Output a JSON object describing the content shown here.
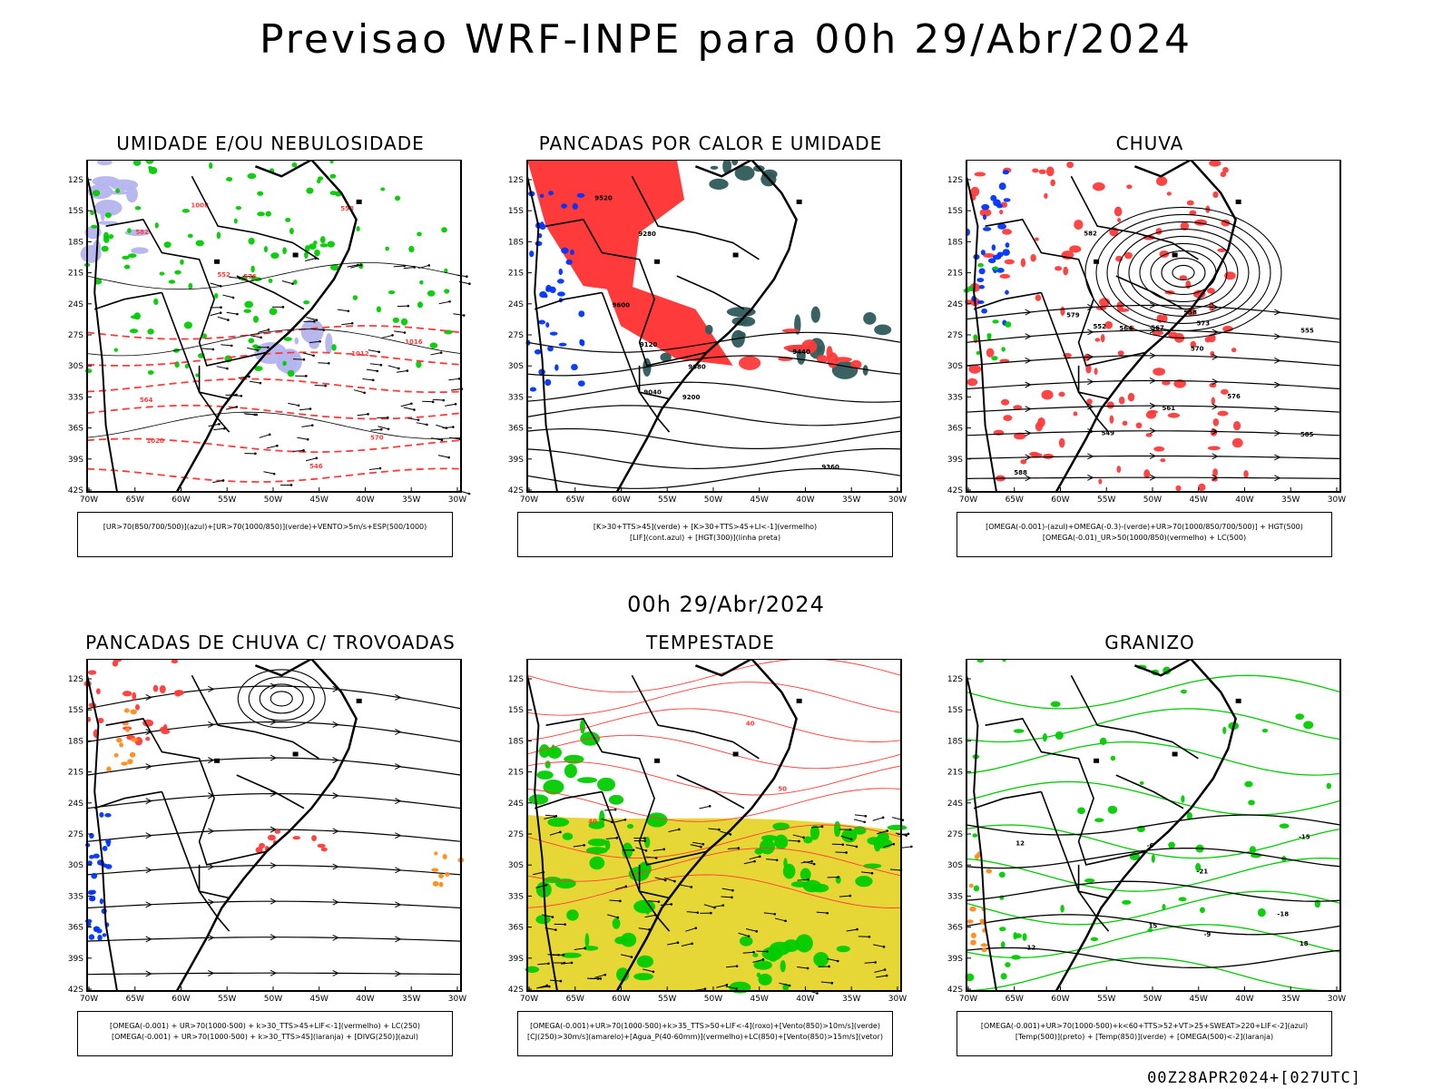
{
  "title": "Previsao WRF-INPE  para 00h 29/Abr/2024",
  "mid_label": "00h 29/Abr/2024",
  "footer": "00Z28APR2024+[027UTC]",
  "axes": {
    "lat_ticks": [
      "12S",
      "15S",
      "18S",
      "21S",
      "24S",
      "27S",
      "30S",
      "33S",
      "36S",
      "39S",
      "42S"
    ],
    "lon_ticks": [
      "70W",
      "65W",
      "60W",
      "55W",
      "50W",
      "45W",
      "40W",
      "35W",
      "30W"
    ]
  },
  "colors": {
    "green": "#00cc00",
    "red": "#ff3a3a",
    "blue": "#0033ff",
    "lavender": "#b4b4ee",
    "dark_teal": "#2f5a5a",
    "yellow": "#e6d736",
    "orange": "#ff8c1a",
    "black": "#000000"
  },
  "panels": [
    {
      "id": "umidade",
      "title": "UMIDADE E/OU NEBULOSIDADE",
      "legend": [
        "[UR>70(850/700/500)](azul)+[UR>70(1000/850)](verde)+VENTO>5m/s+ESP(500/1000)"
      ],
      "labels": [
        "1012",
        "1016",
        "1020",
        "1008",
        "576",
        "570",
        "564",
        "558",
        "552",
        "546",
        "582"
      ]
    },
    {
      "id": "pancadas_calor",
      "title": "PANCADAS POR CALOR E UMIDADE",
      "legend": [
        "[K>30+TTS>45](verde) + [K>30+TTS>45+LI<-1](vermelho)",
        "[LIF](cont.azul) + [HGT(300)](linha preta)"
      ],
      "labels": [
        "9680",
        "9600",
        "9520",
        "9440",
        "9360",
        "9280",
        "9200",
        "9120",
        "9040"
      ]
    },
    {
      "id": "chuva",
      "title": "CHUVA",
      "legend": [
        "[OMEGA(-0.001)-(azul)+OMEGA(-0.3)-(verde)+UR>70(1000/850/700/500)] + HGT(500)",
        "[OMEGA(-0.01)_UR>50(1000/850)(vermelho) + LC(500)"
      ],
      "labels": [
        "588",
        "585",
        "582",
        "579",
        "576",
        "573",
        "570",
        "567",
        "564",
        "561",
        "558",
        "555",
        "552",
        "549"
      ]
    },
    {
      "id": "trovoadas",
      "title": "PANCADAS DE CHUVA C/ TROVOADAS",
      "legend": [
        "[OMEGA(-0.001) + UR>70(1000-500) + k>30_TTS>45+LIF<-1](vermelho) + LC(250)",
        "[OMEGA(-0.001) + UR>70(1000-500) + k>30_TTS>45](laranja) + [DIVG(250)](azul)"
      ],
      "labels": []
    },
    {
      "id": "tempestade",
      "title": "TEMPESTADE",
      "legend": [
        "[OMEGA(-0.001)+UR>70(1000-500)+k>35_TTS>50+LIF<-4](roxo)+[Vento(850)>10m/s](verde)",
        "[CJ(250)>30m/s](amarelo)+[Agua_P(40-60mm)](vermelho)+LC(850)+[Vento(850)>15m/s](vetor)"
      ],
      "labels": [
        "40",
        "50",
        "40"
      ]
    },
    {
      "id": "granizo",
      "title": "GRANIZO",
      "legend": [
        "[OMEGA(-0.001)+UR>70(1000-500)+k<60+TTS>52+VT>25+SWEAT>220+LIF<-2](azul)",
        "[Temp(500)](preto) + [Temp(850)](verde) + [OMEGA(500)<-2](laranja)"
      ],
      "labels": [
        "-6",
        "-9",
        "-12",
        "-15",
        "-18",
        "-21",
        "12",
        "15",
        "18"
      ]
    }
  ]
}
